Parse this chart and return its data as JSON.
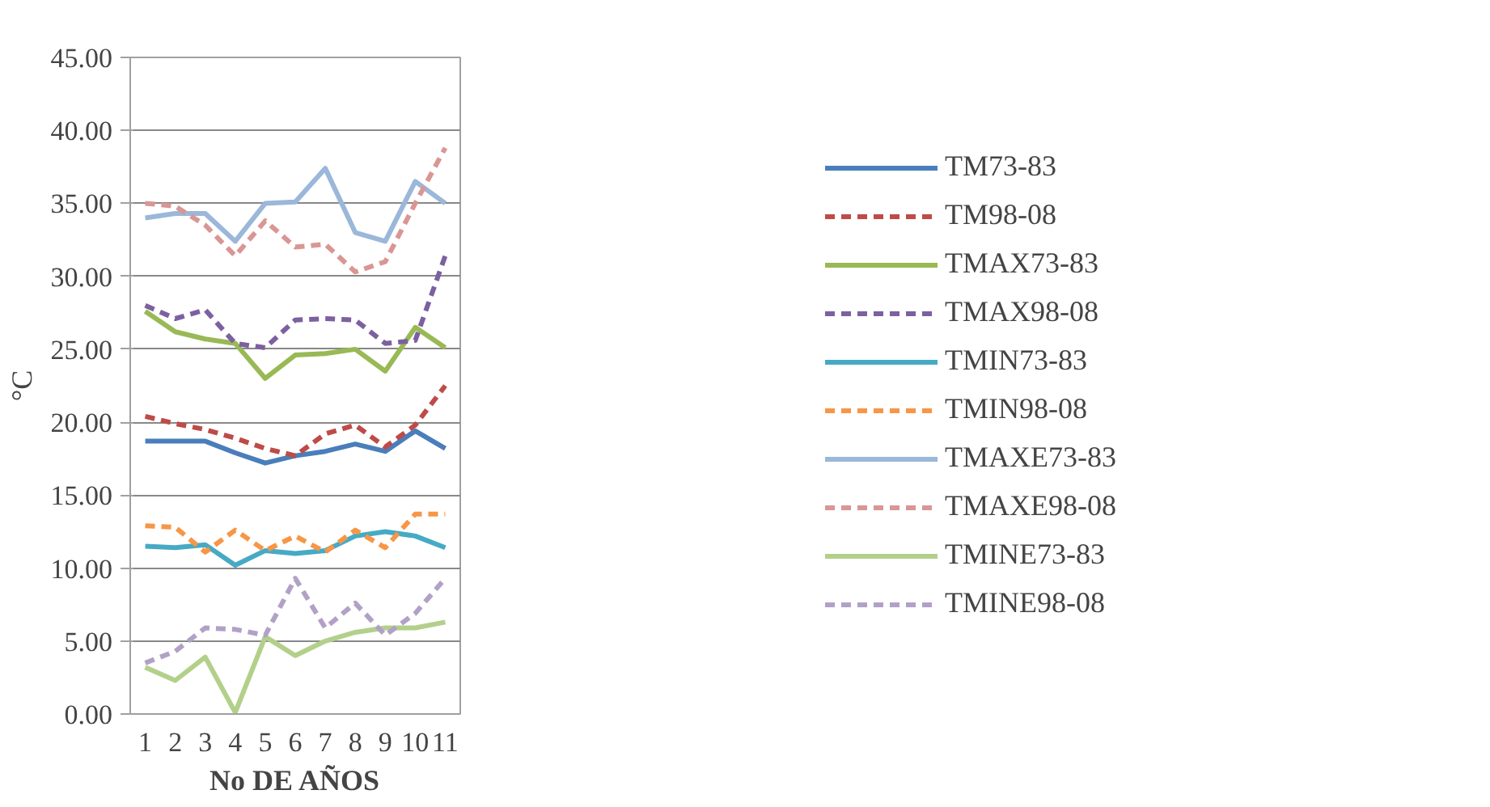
{
  "chart_data": {
    "type": "line",
    "xlabel": "No DE AÑOS",
    "ylabel": "°C",
    "categories": [
      "1",
      "2",
      "3",
      "4",
      "5",
      "6",
      "7",
      "8",
      "9",
      "10",
      "11"
    ],
    "ylim": [
      0,
      45
    ],
    "yticks": [
      {
        "value": 0,
        "label": "0.00"
      },
      {
        "value": 5,
        "label": "5.00"
      },
      {
        "value": 10,
        "label": "10.00"
      },
      {
        "value": 15,
        "label": "15.00"
      },
      {
        "value": 20,
        "label": "20.00"
      },
      {
        "value": 25,
        "label": "25.00"
      },
      {
        "value": 30,
        "label": "30.00"
      },
      {
        "value": 35,
        "label": "35.00"
      },
      {
        "value": 40,
        "label": "40.00"
      },
      {
        "value": 45,
        "label": "45.00"
      }
    ],
    "grid": "y",
    "legend": "right",
    "marker": "none",
    "series": [
      {
        "name": "TM73-83",
        "color": "#4a7ebb",
        "line_style": "solid",
        "values": [
          18.7,
          18.7,
          18.7,
          17.9,
          17.2,
          17.7,
          18.0,
          18.5,
          18.0,
          19.4,
          18.2
        ]
      },
      {
        "name": "TM98-08",
        "color": "#be4b48",
        "line_style": "dashed",
        "values": [
          20.4,
          19.9,
          19.5,
          18.9,
          18.2,
          17.7,
          19.2,
          19.8,
          18.3,
          19.8,
          22.5
        ]
      },
      {
        "name": "TMAX73-83",
        "color": "#98b954",
        "line_style": "solid",
        "values": [
          27.6,
          26.2,
          25.7,
          25.4,
          23.0,
          24.6,
          24.7,
          25.0,
          23.5,
          26.5,
          25.1
        ]
      },
      {
        "name": "TMAX98-08",
        "color": "#7d60a0",
        "line_style": "dashed",
        "values": [
          28.0,
          27.1,
          27.7,
          25.4,
          25.1,
          27.0,
          27.1,
          27.0,
          25.4,
          25.6,
          31.4
        ]
      },
      {
        "name": "TMIN73-83",
        "color": "#46aac5",
        "line_style": "solid",
        "values": [
          11.5,
          11.4,
          11.6,
          10.2,
          11.2,
          11.0,
          11.2,
          12.2,
          12.5,
          12.2,
          11.4
        ]
      },
      {
        "name": "TMIN98-08",
        "color": "#f79646",
        "line_style": "dashed",
        "values": [
          12.9,
          12.8,
          11.1,
          12.6,
          11.2,
          12.2,
          11.1,
          12.6,
          11.4,
          13.7,
          13.7
        ]
      },
      {
        "name": "TMAXE73-83",
        "color": "#9bb7d9",
        "line_style": "solid",
        "values": [
          34.0,
          34.3,
          34.3,
          32.4,
          35.0,
          35.1,
          37.4,
          33.0,
          32.4,
          36.5,
          35.0
        ]
      },
      {
        "name": "TMAXE98-08",
        "color": "#d99694",
        "line_style": "dashed",
        "values": [
          35.0,
          34.8,
          33.5,
          31.4,
          33.8,
          32.0,
          32.2,
          30.3,
          31.0,
          35.0,
          38.8
        ]
      },
      {
        "name": "TMINE73-83",
        "color": "#b3d08b",
        "line_style": "solid",
        "values": [
          3.2,
          2.3,
          3.9,
          0.1,
          5.3,
          4.0,
          5.0,
          5.6,
          5.9,
          5.9,
          6.3
        ]
      },
      {
        "name": "TMINE98-08",
        "color": "#b2a1c7",
        "line_style": "dashed",
        "values": [
          3.5,
          4.3,
          5.9,
          5.8,
          5.4,
          9.3,
          5.9,
          7.6,
          5.4,
          6.9,
          9.3
        ]
      }
    ]
  }
}
